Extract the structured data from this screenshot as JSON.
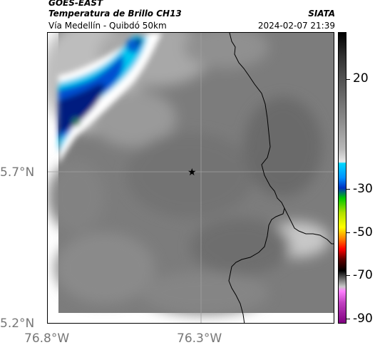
{
  "header": {
    "satellite": "GOES-EAST",
    "product": "Temperatura de Brillo CH13",
    "organization": "SIATA",
    "route": "Vía Medellín - Quibdó 50km",
    "datetime": "2024-02-07 21:39"
  },
  "map": {
    "lat_labels": [
      "5.7°N",
      "5.2°N"
    ],
    "lon_labels": [
      "76.8°W",
      "76.3°W"
    ],
    "marker": "star-marker"
  },
  "colorbar": {
    "ticks": [
      "20",
      "-30",
      "-50",
      "-70",
      "-90"
    ],
    "colors": {
      "warm": "#7a7a7a",
      "cold_cyan": "#00d8ff",
      "cold_blue": "#0030c0",
      "deep_blue": "#001a80"
    }
  }
}
